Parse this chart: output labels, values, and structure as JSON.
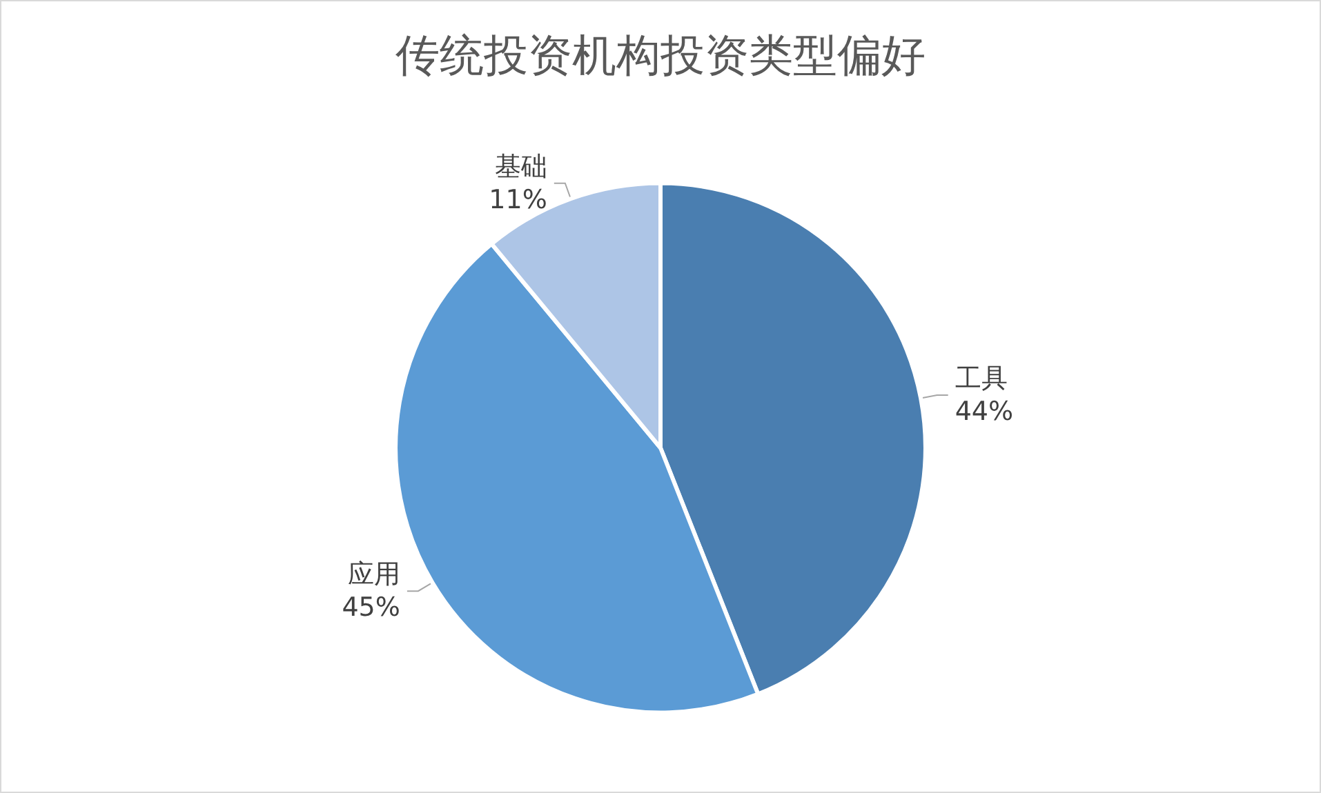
{
  "chart_data": {
    "type": "pie",
    "title": "传统投资机构投资类型偏好",
    "categories": [
      "工具",
      "应用",
      "基础"
    ],
    "values": [
      44,
      45,
      11
    ],
    "value_labels": [
      "44%",
      "45%",
      "11%"
    ],
    "colors": [
      "#4a7eb0",
      "#5b9bd5",
      "#adc5e6"
    ],
    "legend": false
  }
}
